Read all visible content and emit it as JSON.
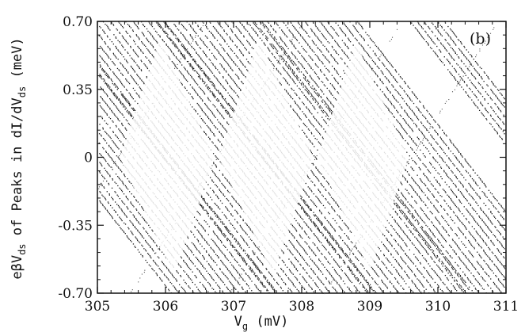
{
  "chart_data": {
    "type": "scatter",
    "panel_label": "(b)",
    "xlabel": "V",
    "xlabel_sub": "g",
    "xlabel_unit": " (mV)",
    "ylabel_parts": {
      "prefix": "eβV",
      "sub": "ds",
      "middle": " of Peaks in dI/dV",
      "sub2": "ds",
      "unit": " (meV)"
    },
    "xlim": [
      305,
      311
    ],
    "ylim": [
      -0.7,
      0.7
    ],
    "xticks": [
      "305",
      "306",
      "307",
      "308",
      "309",
      "310",
      "311"
    ],
    "yticks": [
      "0.70",
      "0.35",
      "0",
      "-0.35",
      "-0.70"
    ],
    "grid": false,
    "diamond_vertices_x": [
      305.3,
      306.75,
      308.2,
      309.6
    ],
    "point_color": "#1a1a1a"
  }
}
